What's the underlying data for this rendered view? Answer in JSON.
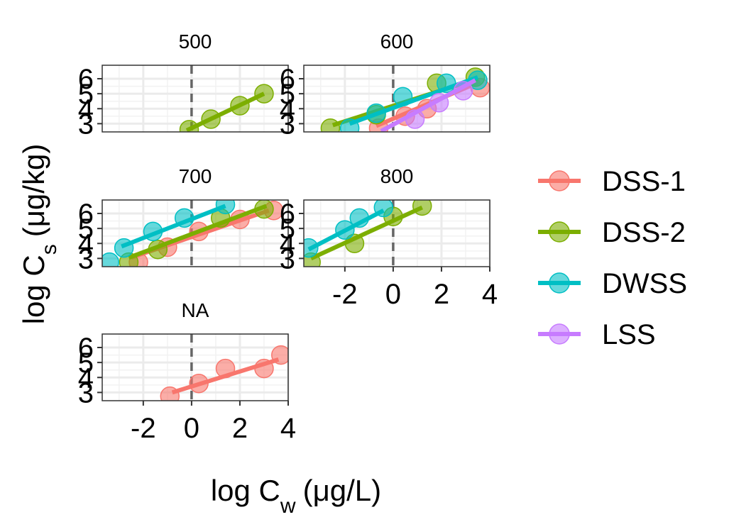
{
  "chart_data": {
    "type": "scatter",
    "xlabel": "log C",
    "xlabel_sub": "w",
    "xlabel_unit": "(μg/L)",
    "ylabel": "log C",
    "ylabel_sub": "s",
    "ylabel_unit": "(μg/kg)",
    "xlim": [
      -3.7,
      4.0
    ],
    "ylim": [
      2.45,
      6.9
    ],
    "xticks": [
      -2,
      0,
      2,
      4
    ],
    "yticks": [
      3,
      4,
      5,
      6
    ],
    "xtick_labels": [
      "-2",
      "0",
      "2",
      "4"
    ],
    "ytick_labels": [
      "3",
      "4",
      "5",
      "6"
    ],
    "vline_x": 0,
    "grid": true,
    "legend_position": "right",
    "legend": [
      "DSS-1",
      "DSS-2",
      "DWSS",
      "LSS"
    ],
    "colors": {
      "DSS-1": "#F8766D",
      "DSS-2": "#7CAE00",
      "DWSS": "#00BFC4",
      "LSS": "#C77CFF"
    },
    "panels": [
      {
        "strip": "500",
        "series": [
          {
            "name": "DSS-2",
            "points": [
              [
                -0.1,
                2.6
              ],
              [
                0.8,
                3.3
              ],
              [
                2.0,
                4.2
              ],
              [
                3.0,
                5.0
              ]
            ],
            "fit": [
              [
                -0.2,
                2.55
              ],
              [
                3.0,
                5.0
              ]
            ]
          }
        ]
      },
      {
        "strip": "600",
        "series": [
          {
            "name": "DSS-1",
            "points": [
              [
                -0.6,
                2.7
              ],
              [
                0.5,
                3.5
              ],
              [
                1.4,
                4.0
              ],
              [
                3.6,
                5.4
              ]
            ],
            "fit": [
              [
                -0.7,
                2.85
              ],
              [
                3.6,
                5.8
              ]
            ]
          },
          {
            "name": "DSS-2",
            "points": [
              [
                -2.6,
                2.7
              ],
              [
                -0.7,
                3.6
              ],
              [
                1.8,
                5.7
              ],
              [
                3.4,
                6.1
              ]
            ],
            "fit": [
              [
                -2.5,
                2.9
              ],
              [
                3.5,
                6.0
              ]
            ]
          },
          {
            "name": "DWSS",
            "points": [
              [
                -1.8,
                2.7
              ],
              [
                -0.7,
                3.7
              ],
              [
                0.4,
                4.8
              ],
              [
                2.2,
                5.7
              ],
              [
                3.5,
                5.9
              ]
            ],
            "fit": [
              [
                -1.8,
                3.0
              ],
              [
                3.5,
                6.1
              ]
            ]
          },
          {
            "name": "LSS",
            "points": [
              [
                0.9,
                3.3
              ],
              [
                1.9,
                4.4
              ],
              [
                2.9,
                5.2
              ]
            ],
            "fit": [
              [
                -0.5,
                2.5
              ],
              [
                3.4,
                5.9
              ]
            ]
          }
        ]
      },
      {
        "strip": "700",
        "series": [
          {
            "name": "DSS-1",
            "points": [
              [
                -2.2,
                2.75
              ],
              [
                -1.0,
                3.75
              ],
              [
                0.3,
                4.8
              ],
              [
                2.0,
                5.6
              ],
              [
                3.4,
                6.2
              ]
            ],
            "fit": [
              [
                -2.5,
                3.05
              ],
              [
                3.2,
                6.2
              ]
            ]
          },
          {
            "name": "DSS-2",
            "points": [
              [
                -2.6,
                2.75
              ],
              [
                -1.4,
                3.6
              ],
              [
                1.2,
                5.7
              ],
              [
                3.0,
                6.3
              ]
            ],
            "fit": [
              [
                -2.6,
                3.05
              ],
              [
                3.1,
                6.5
              ]
            ]
          },
          {
            "name": "DWSS",
            "points": [
              [
                -3.4,
                2.75
              ],
              [
                -2.8,
                3.7
              ],
              [
                -1.6,
                4.8
              ],
              [
                -0.3,
                5.7
              ],
              [
                1.4,
                6.6
              ]
            ],
            "fit": [
              [
                -2.9,
                3.8
              ],
              [
                1.4,
                6.5
              ]
            ]
          }
        ]
      },
      {
        "strip": "800",
        "series": [
          {
            "name": "DSS-2",
            "points": [
              [
                -3.4,
                2.75
              ],
              [
                -1.6,
                4.0
              ],
              [
                0.0,
                5.8
              ],
              [
                1.2,
                6.5
              ]
            ],
            "fit": [
              [
                -3.4,
                3.0
              ],
              [
                1.2,
                6.4
              ]
            ]
          },
          {
            "name": "DWSS",
            "points": [
              [
                -3.5,
                3.7
              ],
              [
                -2.0,
                4.9
              ],
              [
                -1.4,
                5.7
              ],
              [
                -0.4,
                6.4
              ]
            ],
            "fit": [
              [
                -3.5,
                3.6
              ],
              [
                -0.4,
                6.2
              ]
            ]
          }
        ]
      },
      {
        "strip": "NA",
        "series": [
          {
            "name": "DSS-1",
            "points": [
              [
                -0.9,
                2.75
              ],
              [
                0.3,
                3.6
              ],
              [
                1.4,
                4.6
              ],
              [
                3.0,
                4.6
              ],
              [
                3.7,
                5.5
              ]
            ],
            "fit": [
              [
                -0.8,
                3.0
              ],
              [
                3.6,
                5.2
              ]
            ]
          }
        ]
      }
    ]
  }
}
